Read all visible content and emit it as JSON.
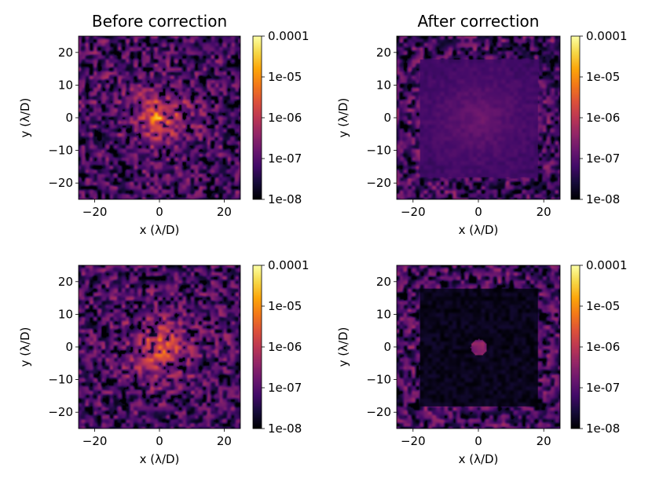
{
  "chart_data": [
    {
      "type": "heatmap",
      "title": "Before correction",
      "xlabel": "x (λ/D)",
      "ylabel": "y (λ/D)",
      "xlim": [
        -25,
        25
      ],
      "ylim": [
        -25,
        25
      ],
      "xticks": [
        -20,
        0,
        20
      ],
      "yticks": [
        -20,
        -10,
        0,
        10,
        20
      ],
      "colormap": "inferno",
      "colorbar_ticks": [
        "1e-08",
        "1e-07",
        "1e-06",
        "1e-05",
        "0.0001"
      ],
      "color_scale": "log",
      "dark_hole": false
    },
    {
      "type": "heatmap",
      "title": "After correction",
      "xlabel": "x (λ/D)",
      "ylabel": "y (λ/D)",
      "xlim": [
        -25,
        25
      ],
      "ylim": [
        -25,
        25
      ],
      "xticks": [
        -20,
        0,
        20
      ],
      "yticks": [
        -20,
        -10,
        0,
        10,
        20
      ],
      "colormap": "inferno",
      "colorbar_ticks": [
        "1e-08",
        "1e-07",
        "1e-06",
        "1e-05",
        "0.0001"
      ],
      "color_scale": "log",
      "dark_hole": true,
      "dark_hole_depth": 0.55
    },
    {
      "type": "heatmap",
      "title": "",
      "xlabel": "x (λ/D)",
      "ylabel": "y (λ/D)",
      "xlim": [
        -25,
        25
      ],
      "ylim": [
        -25,
        25
      ],
      "xticks": [
        -20,
        0,
        20
      ],
      "yticks": [
        -20,
        -10,
        0,
        10,
        20
      ],
      "colormap": "inferno",
      "colorbar_ticks": [
        "1e-08",
        "1e-07",
        "1e-06",
        "1e-05",
        "0.0001"
      ],
      "color_scale": "log",
      "dark_hole": false
    },
    {
      "type": "heatmap",
      "title": "",
      "xlabel": "x (λ/D)",
      "ylabel": "y (λ/D)",
      "xlim": [
        -25,
        25
      ],
      "ylim": [
        -25,
        25
      ],
      "xticks": [
        -20,
        0,
        20
      ],
      "yticks": [
        -20,
        -10,
        0,
        10,
        20
      ],
      "colormap": "inferno",
      "colorbar_ticks": [
        "1e-08",
        "1e-07",
        "1e-06",
        "1e-05",
        "0.0001"
      ],
      "color_scale": "log",
      "dark_hole": true,
      "dark_hole_depth": 0.95
    }
  ]
}
